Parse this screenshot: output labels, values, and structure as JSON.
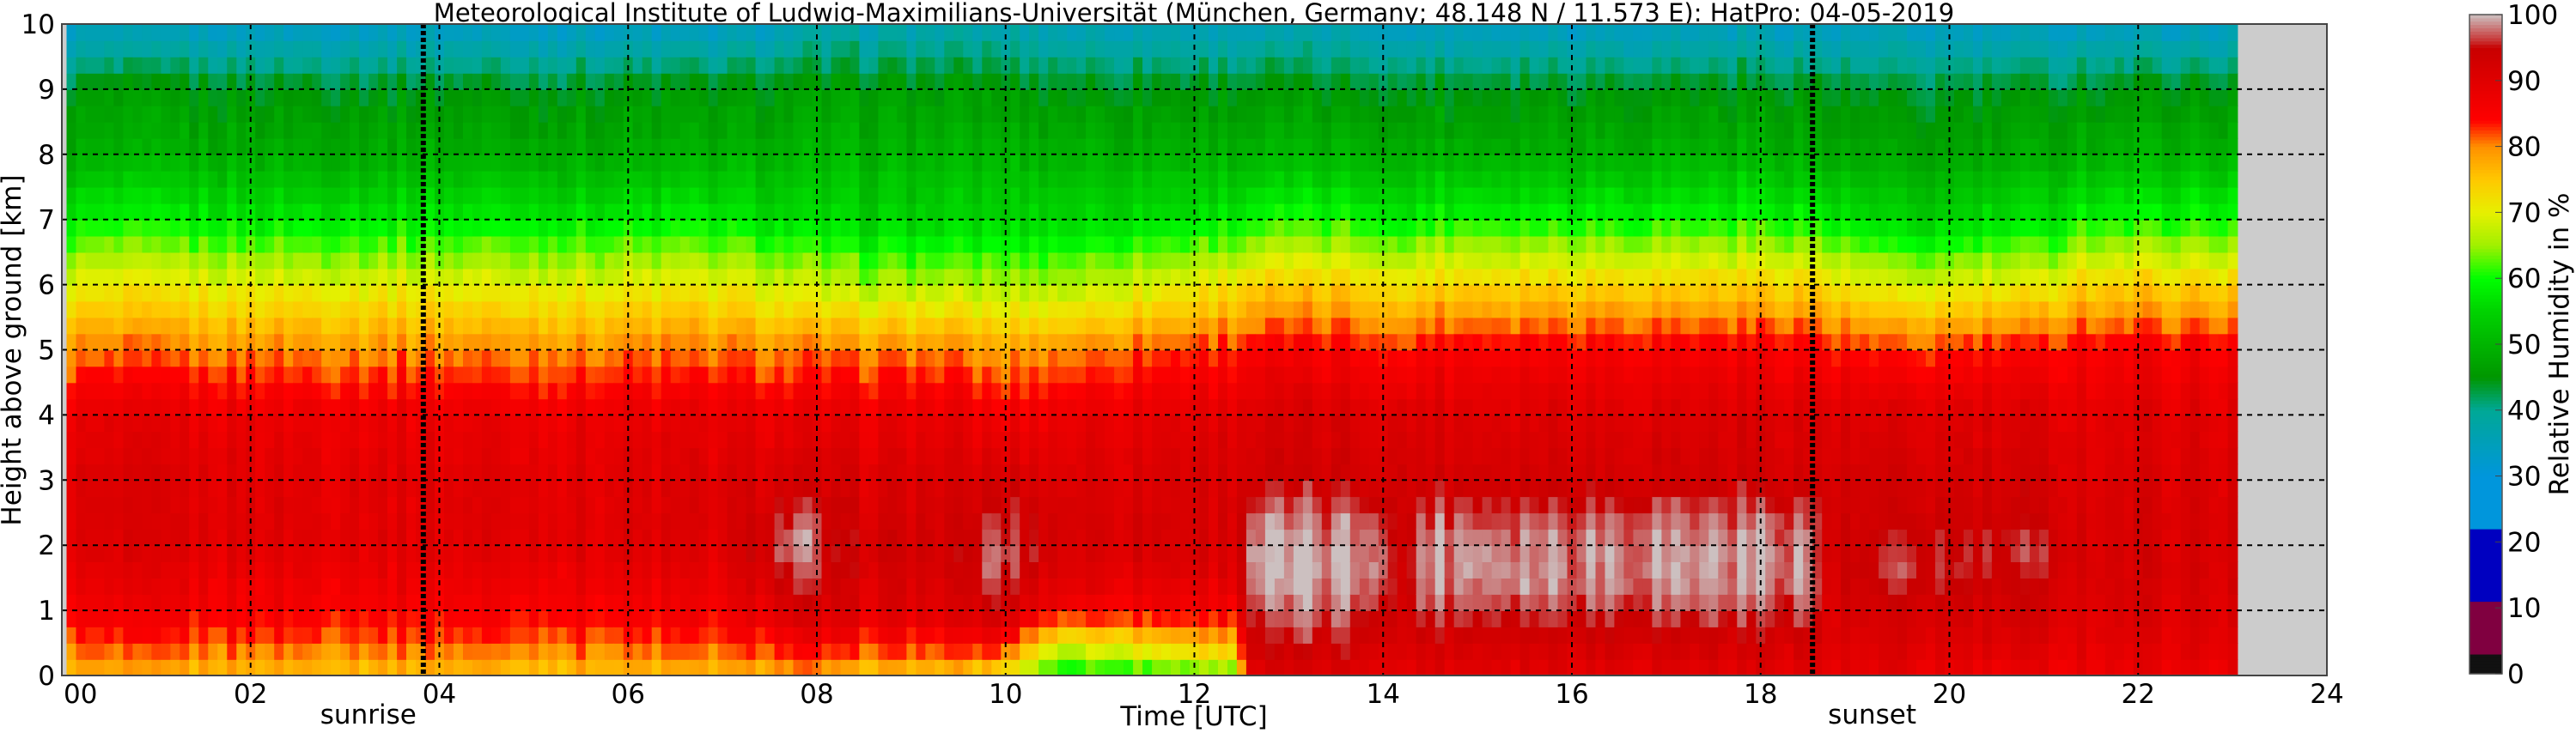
{
  "chart_data": {
    "type": "heatmap",
    "title": "Meteorological Institute of Ludwig-Maximilians-Universität (München, Germany; 48.148 N / 11.573 E):    HatPro: 04-05-2019",
    "xlabel": "Time [UTC]",
    "ylabel": "Height above ground [km]",
    "colorbar_label": "Relative Humidity in %",
    "xlim": [
      0,
      24
    ],
    "ylim": [
      0,
      10
    ],
    "clim": [
      0,
      100
    ],
    "xticks": [
      "00",
      "02",
      "04",
      "06",
      "08",
      "10",
      "12",
      "14",
      "16",
      "18",
      "20",
      "22",
      "24"
    ],
    "xtick_values": [
      0,
      2,
      4,
      6,
      8,
      10,
      12,
      14,
      16,
      18,
      20,
      22,
      24
    ],
    "yticks": [
      "0",
      "1",
      "2",
      "3",
      "4",
      "5",
      "6",
      "7",
      "8",
      "9",
      "10"
    ],
    "colorbar_ticks": [
      "0",
      "10",
      "20",
      "30",
      "40",
      "50",
      "60",
      "70",
      "80",
      "90",
      "100"
    ],
    "grid": true,
    "data_end_time": 23.05,
    "missing_color": "#cccccc",
    "annotations": [
      {
        "label": "sunrise",
        "time": 3.83
      },
      {
        "label": "sunset",
        "time": 18.55
      }
    ],
    "heights_km": [
      0,
      0.5,
      1,
      1.5,
      2,
      2.5,
      3,
      4,
      5,
      6,
      7,
      8,
      9,
      10
    ],
    "keyframes": [
      {
        "time": 0,
        "rh": [
          76,
          82,
          86,
          88,
          90,
          90,
          90,
          88,
          80,
          70,
          58,
          49,
          45,
          33
        ]
      },
      {
        "time": 7,
        "rh": [
          76,
          82,
          86,
          88,
          90,
          90,
          90,
          88,
          80,
          70,
          58,
          49,
          45,
          33
        ]
      },
      {
        "time": 7.8,
        "rh": [
          78,
          86,
          92,
          96,
          99,
          96,
          92,
          88,
          80,
          68,
          56,
          50,
          46,
          35
        ]
      },
      {
        "time": 8.3,
        "rh": [
          75,
          84,
          90,
          92,
          93,
          92,
          91,
          88,
          80,
          66,
          55,
          50,
          46,
          36
        ]
      },
      {
        "time": 9.5,
        "rh": [
          75,
          84,
          90,
          92,
          93,
          92,
          91,
          88,
          80,
          66,
          55,
          50,
          46,
          36
        ]
      },
      {
        "time": 9.9,
        "rh": [
          72,
          86,
          94,
          97,
          98,
          95,
          92,
          86,
          78,
          66,
          55,
          50,
          46,
          36
        ]
      },
      {
        "time": 10.6,
        "rh": [
          58,
          70,
          86,
          90,
          92,
          92,
          91,
          88,
          80,
          66,
          56,
          50,
          45,
          35
        ]
      },
      {
        "time": 12.4,
        "rh": [
          62,
          78,
          86,
          90,
          92,
          92,
          92,
          90,
          84,
          72,
          58,
          50,
          45,
          35
        ]
      },
      {
        "time": 12.6,
        "rh": [
          90,
          94,
          97,
          99,
          99,
          97,
          93,
          91,
          85,
          74,
          60,
          50,
          45,
          35
        ]
      },
      {
        "time": 14.0,
        "rh": [
          90,
          94,
          97,
          99,
          99,
          97,
          93,
          91,
          85,
          74,
          60,
          50,
          45,
          35
        ]
      },
      {
        "time": 14.2,
        "rh": [
          88,
          90,
          91,
          92,
          92,
          92,
          92,
          90,
          82,
          70,
          56,
          48,
          43,
          32
        ]
      },
      {
        "time": 14.4,
        "rh": [
          90,
          93,
          97,
          99,
          99,
          97,
          93,
          91,
          86,
          74,
          60,
          50,
          45,
          34
        ]
      },
      {
        "time": 18.5,
        "rh": [
          90,
          93,
          97,
          99,
          99,
          97,
          93,
          91,
          86,
          74,
          60,
          50,
          45,
          34
        ]
      },
      {
        "time": 18.7,
        "rh": [
          88,
          90,
          91,
          92,
          92,
          92,
          92,
          90,
          84,
          72,
          58,
          48,
          44,
          33
        ]
      },
      {
        "time": 19.5,
        "rh": [
          88,
          91,
          92,
          96,
          95,
          93,
          92,
          90,
          82,
          68,
          54,
          47,
          43,
          33
        ]
      },
      {
        "time": 20.5,
        "rh": [
          87,
          90,
          92,
          94,
          95,
          93,
          92,
          90,
          84,
          70,
          56,
          48,
          44,
          33
        ]
      },
      {
        "time": 21.1,
        "rh": [
          87,
          90,
          92,
          94,
          95,
          93,
          92,
          90,
          84,
          70,
          56,
          48,
          44,
          33
        ]
      },
      {
        "time": 21.3,
        "rh": [
          88,
          90,
          91,
          92,
          92,
          92,
          91,
          90,
          86,
          74,
          60,
          50,
          45,
          34
        ]
      },
      {
        "time": 23.05,
        "rh": [
          88,
          90,
          91,
          92,
          92,
          92,
          91,
          90,
          86,
          74,
          60,
          50,
          45,
          34
        ]
      }
    ],
    "colormap": [
      [
        0,
        "#111111"
      ],
      [
        2.9,
        "#111111"
      ],
      [
        3,
        "#220038"
      ],
      [
        3.1,
        "#800040"
      ],
      [
        11,
        "#800040"
      ],
      [
        11.1,
        "#0000c0"
      ],
      [
        22,
        "#0000c0"
      ],
      [
        22.1,
        "#0096dc"
      ],
      [
        30,
        "#0096dc"
      ],
      [
        40,
        "#00a896"
      ],
      [
        45,
        "#009600"
      ],
      [
        55,
        "#00d200"
      ],
      [
        60,
        "#00ff00"
      ],
      [
        65,
        "#a0f000"
      ],
      [
        70,
        "#e6f000"
      ],
      [
        75,
        "#ffc800"
      ],
      [
        80,
        "#ff9000"
      ],
      [
        84,
        "#ff0000"
      ],
      [
        90,
        "#e00000"
      ],
      [
        95,
        "#c80000"
      ],
      [
        96,
        "#c83030"
      ],
      [
        100,
        "#ccc0c0"
      ]
    ]
  }
}
